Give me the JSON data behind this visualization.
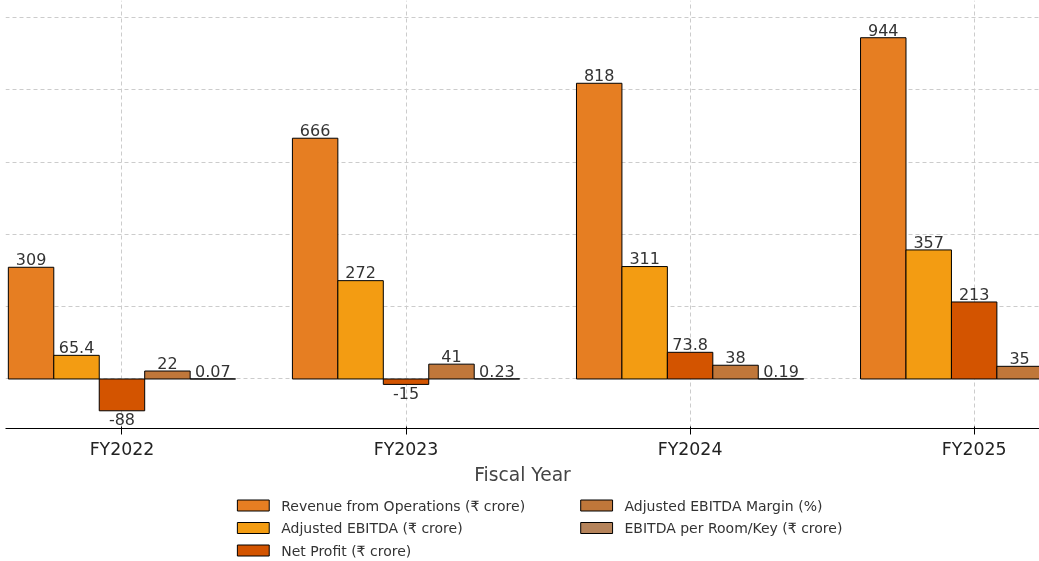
{
  "chart_data": {
    "type": "bar",
    "xlabel": "Fiscal Year",
    "categories": [
      "FY2022",
      "FY2023",
      "FY2024",
      "FY2025"
    ],
    "series": [
      {
        "name": "Revenue from Operations (₹ crore)",
        "color": "#e67e22",
        "values": [
          309,
          666,
          818,
          944
        ]
      },
      {
        "name": "Adjusted EBITDA (₹ crore)",
        "color": "#f39c12",
        "values": [
          65.4,
          272,
          311,
          357
        ]
      },
      {
        "name": "Net Profit (₹ crore)",
        "color": "#d35400",
        "values": [
          -88,
          -15,
          73.8,
          213
        ]
      },
      {
        "name": "Adjusted EBITDA Margin (%)",
        "color": "#c0773a",
        "values": [
          22,
          41,
          38,
          35
        ]
      },
      {
        "name": "EBITDA per Room/Key (₹ crore)",
        "color": "#b5835a",
        "values": [
          0.07,
          0.23,
          0.19,
          null
        ]
      }
    ],
    "ylim": [
      -137,
      1047
    ],
    "yticks": [
      {
        "value": 0,
        "label": null
      },
      {
        "value": 200,
        "label": null
      },
      {
        "value": 400,
        "label": null
      },
      {
        "value": 600,
        "label": null
      },
      {
        "value": 800,
        "label": null
      },
      {
        "value": 1000,
        "label": null
      }
    ],
    "tick_labels": "x",
    "grid": true,
    "legend": "bottom",
    "data_labels": true
  }
}
